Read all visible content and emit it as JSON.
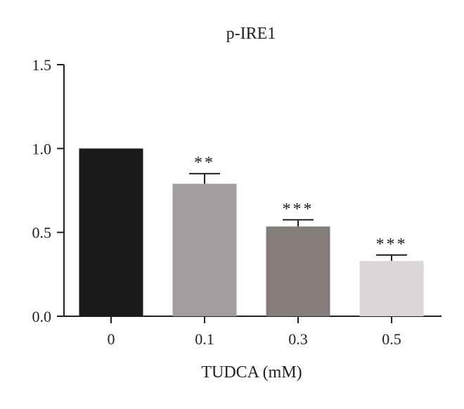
{
  "chart_data": {
    "type": "bar",
    "title": "p-IRE1",
    "xlabel": "TUDCA (mM)",
    "ylabel": "",
    "ylim": [
      0,
      1.5
    ],
    "yticks": [
      "0.0",
      "0.5",
      "1.0",
      "1.5"
    ],
    "categories": [
      "0",
      "0.1",
      "0.3",
      "0.5"
    ],
    "values": [
      1.0,
      0.79,
      0.535,
      0.33
    ],
    "errors": [
      0,
      0.06,
      0.04,
      0.035
    ],
    "significance": [
      "",
      "**",
      "***",
      "***"
    ],
    "colors": [
      "#1a1a1a",
      "#a39c9c",
      "#857d79",
      "#dcd7d7"
    ],
    "grid": false
  }
}
